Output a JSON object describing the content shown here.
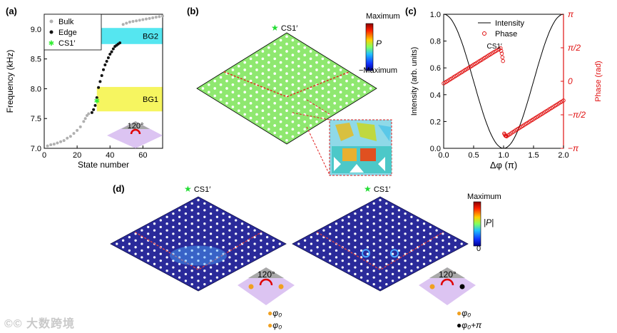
{
  "panels": {
    "a": {
      "label": "(a)",
      "legend": [
        "Bulk",
        "Edge",
        "CS1′"
      ],
      "xlabel": "State number",
      "ylabel": "Frequency (kHz)",
      "xticks": [
        "0",
        "20",
        "40",
        "60"
      ],
      "yticks": [
        "7.0",
        "7.5",
        "8.0",
        "8.5",
        "9.0"
      ],
      "bands": [
        "BG2",
        "BG1"
      ],
      "angle": "120°"
    },
    "b": {
      "label": "(b)",
      "marker": "CS1′",
      "colorbar_max": "Maximum",
      "colorbar_mid": "P",
      "colorbar_min": "−Maximum"
    },
    "c": {
      "label": "(c)",
      "legend": [
        "Intensity",
        "Phase"
      ],
      "marker": "CS1′",
      "xlabel": "Δφ (π)",
      "ylabel_left": "Intensity (arb. units)",
      "ylabel_right": "Phase (rad)",
      "xticks": [
        "0.0",
        "0.5",
        "1.0",
        "1.5",
        "2.0"
      ],
      "yticks_left": [
        "0.0",
        "0.2",
        "0.4",
        "0.6",
        "0.8",
        "1.0"
      ],
      "yticks_right": [
        "π",
        "π/2",
        "0",
        "−π/2",
        "−π"
      ]
    },
    "d": {
      "label": "(d)",
      "marker_left": "CS1′",
      "marker_right": "CS1′",
      "colorbar_max": "Maximum",
      "colorbar_mid": "|P|",
      "colorbar_min": "0",
      "angle_left": "120°",
      "angle_right": "120°",
      "legend_left": [
        "φ₀",
        "φ₀"
      ],
      "legend_right": [
        "φ₀",
        "φ₀+π"
      ]
    }
  },
  "watermark": "©© 大数跨境",
  "colors": {
    "bulk": "#b0b0b0",
    "edge": "#111111",
    "cs": "#33ee33",
    "bg2": "#55e6f0",
    "bg1": "#f6f560",
    "phase": "#e01010",
    "lattice_b": "#8fe870",
    "lattice_d": "#2a2a9a",
    "wedge": "#dcc4f2"
  },
  "chart_data": [
    {
      "type": "scatter",
      "panel": "a",
      "xlabel": "State number",
      "ylabel": "Frequency (kHz)",
      "xlim": [
        0,
        72
      ],
      "ylim": [
        7.0,
        9.25
      ],
      "bands": [
        {
          "name": "BG2",
          "range": [
            8.75,
            9.02
          ]
        },
        {
          "name": "BG1",
          "range": [
            7.62,
            8.03
          ]
        }
      ],
      "series": [
        {
          "name": "Bulk",
          "x": [
            2,
            4,
            6,
            8,
            10,
            12,
            14,
            16,
            18,
            20,
            22,
            24,
            25,
            26,
            27,
            48,
            50,
            52,
            54,
            56,
            58,
            60,
            62,
            64,
            66,
            68,
            70,
            72
          ],
          "y": [
            7.04,
            7.06,
            7.07,
            7.09,
            7.11,
            7.13,
            7.17,
            7.2,
            7.25,
            7.3,
            7.36,
            7.45,
            7.5,
            7.55,
            7.58,
            9.08,
            9.1,
            9.12,
            9.13,
            9.14,
            9.15,
            9.16,
            9.17,
            9.18,
            9.19,
            9.2,
            9.21,
            9.22
          ]
        },
        {
          "name": "Edge",
          "x": [
            29,
            30,
            31,
            32,
            33,
            34,
            35,
            36,
            37,
            38,
            39,
            40,
            41,
            42,
            43,
            44,
            45,
            46
          ],
          "y": [
            7.6,
            7.65,
            7.72,
            7.85,
            8.02,
            8.12,
            8.22,
            8.32,
            8.4,
            8.46,
            8.52,
            8.58,
            8.62,
            8.67,
            8.71,
            8.73,
            8.75,
            8.77
          ]
        },
        {
          "name": "CS1′",
          "x": [
            32
          ],
          "y": [
            7.8
          ]
        }
      ]
    },
    {
      "type": "line",
      "panel": "c",
      "xlabel": "Δφ (π)",
      "ylabel": "Intensity (arb. units)",
      "ylabel_right": "Phase (rad)",
      "xlim": [
        0,
        2
      ],
      "ylim": [
        0,
        1
      ],
      "ylim_right": [
        -3.1416,
        3.1416
      ],
      "series": [
        {
          "name": "Intensity",
          "function": "cos^2(pi*x/2)",
          "x_range": [
            0,
            2
          ]
        },
        {
          "name": "Phase",
          "x": [
            0.0,
            0.2,
            0.4,
            0.6,
            0.8,
            0.95,
            0.97,
            0.99,
            1.01,
            1.03,
            1.05,
            1.2,
            1.4,
            1.6,
            1.8,
            2.0
          ],
          "y": [
            -0.1,
            0.25,
            0.6,
            0.95,
            1.3,
            1.55,
            1.3,
            0.95,
            -2.45,
            -2.55,
            -2.58,
            -2.3,
            -1.95,
            -1.6,
            -1.25,
            -0.9
          ]
        }
      ]
    }
  ]
}
